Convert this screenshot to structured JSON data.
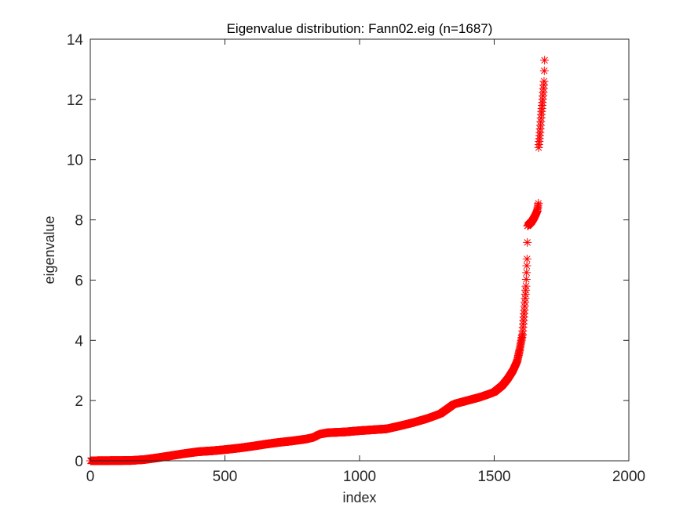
{
  "chart_data": {
    "type": "scatter",
    "title": "Eigenvalue distribution: Fann02.eig (n=1687)",
    "xlabel": "index",
    "ylabel": "eigenvalue",
    "xlim": [
      0,
      2000
    ],
    "ylim": [
      0,
      14
    ],
    "xticks": [
      "0",
      "500",
      "1000",
      "1500",
      "2000"
    ],
    "yticks": [
      "0",
      "2",
      "4",
      "6",
      "8",
      "10",
      "12",
      "14"
    ],
    "marker": "asterisk",
    "marker_color": "#ff0000",
    "grid": false,
    "n": 1687,
    "curve": [
      [
        1,
        0.0
      ],
      [
        150,
        0.01
      ],
      [
        200,
        0.04
      ],
      [
        250,
        0.1
      ],
      [
        300,
        0.17
      ],
      [
        350,
        0.24
      ],
      [
        400,
        0.3
      ],
      [
        450,
        0.33
      ],
      [
        500,
        0.37
      ],
      [
        550,
        0.42
      ],
      [
        600,
        0.48
      ],
      [
        650,
        0.55
      ],
      [
        700,
        0.61
      ],
      [
        750,
        0.66
      ],
      [
        800,
        0.72
      ],
      [
        830,
        0.78
      ],
      [
        850,
        0.88
      ],
      [
        880,
        0.93
      ],
      [
        950,
        0.96
      ],
      [
        1000,
        1.0
      ],
      [
        1050,
        1.03
      ],
      [
        1100,
        1.06
      ],
      [
        1150,
        1.16
      ],
      [
        1200,
        1.27
      ],
      [
        1250,
        1.4
      ],
      [
        1300,
        1.56
      ],
      [
        1330,
        1.75
      ],
      [
        1350,
        1.88
      ],
      [
        1400,
        2.0
      ],
      [
        1450,
        2.12
      ],
      [
        1500,
        2.28
      ],
      [
        1530,
        2.5
      ],
      [
        1550,
        2.72
      ],
      [
        1570,
        3.0
      ],
      [
        1585,
        3.3
      ],
      [
        1595,
        3.7
      ],
      [
        1605,
        4.2
      ],
      [
        1612,
        5.0
      ],
      [
        1618,
        5.8
      ],
      [
        1622,
        6.7
      ],
      [
        1624,
        7.8
      ],
      [
        1640,
        7.95
      ],
      [
        1650,
        8.1
      ],
      [
        1660,
        8.3
      ],
      [
        1664,
        8.55
      ],
      [
        1665,
        10.4
      ],
      [
        1670,
        10.9
      ],
      [
        1675,
        11.5
      ],
      [
        1680,
        12.0
      ],
      [
        1685,
        12.6
      ],
      [
        1687,
        13.3
      ]
    ]
  }
}
